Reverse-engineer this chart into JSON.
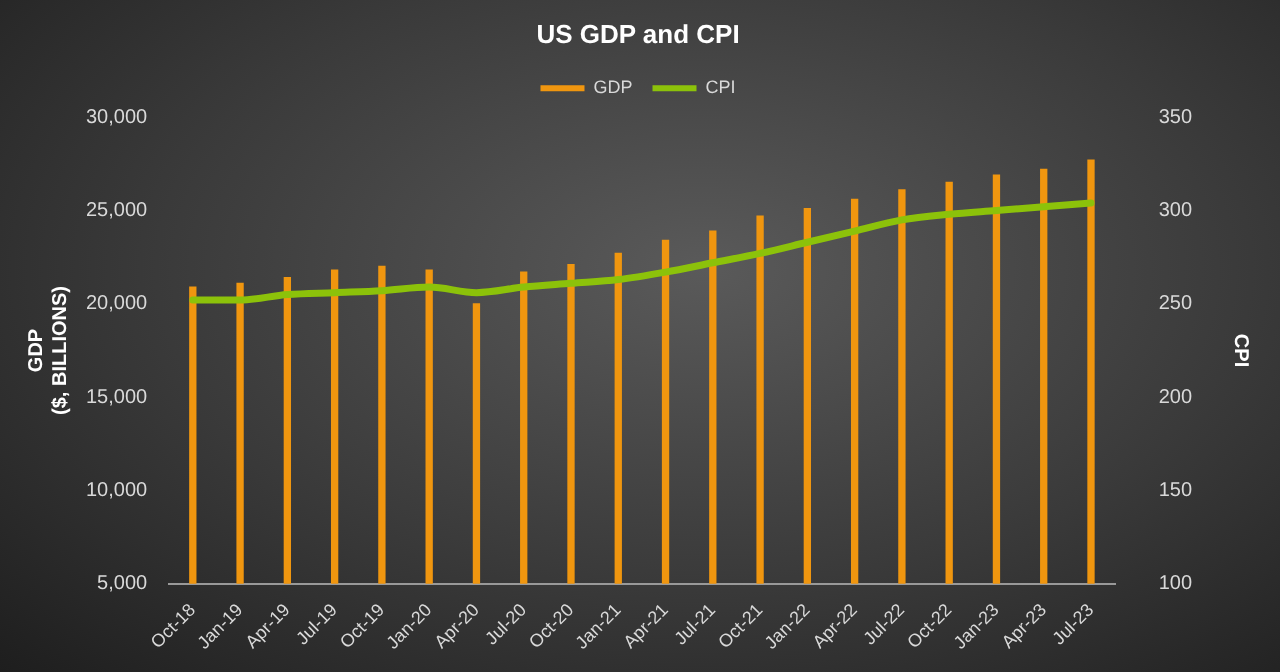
{
  "chart_data": {
    "type": "bar",
    "title": "US GDP and CPI",
    "ylabel": "GDP\n($, BILLIONS)",
    "y2label": "CPI",
    "categories": [
      "Oct-18",
      "Jan-19",
      "Apr-19",
      "Jul-19",
      "Oct-19",
      "Jan-20",
      "Apr-20",
      "Jul-20",
      "Oct-20",
      "Jan-21",
      "Apr-21",
      "Jul-21",
      "Oct-21",
      "Jan-22",
      "Apr-22",
      "Jul-22",
      "Oct-22",
      "Jan-23",
      "Apr-23",
      "Jul-23"
    ],
    "series": [
      {
        "name": "GDP",
        "color": "#f0960f",
        "values": [
          20900,
          21100,
          21400,
          21800,
          22000,
          21800,
          20000,
          21700,
          22100,
          22700,
          23400,
          23900,
          24700,
          25100,
          25600,
          26100,
          26500,
          26900,
          27200,
          27700
        ]
      },
      {
        "name": "CPI",
        "type": "line",
        "axis": "y2",
        "color": "#8cc20a",
        "values": [
          252,
          252,
          255,
          256,
          257,
          259,
          256,
          259,
          261,
          263,
          267,
          272,
          277,
          283,
          289,
          295,
          298,
          300,
          302,
          304
        ]
      }
    ],
    "ylim": [
      5000,
      30000
    ],
    "yticks": [
      {
        "value": 5000,
        "label": "5,000"
      },
      {
        "value": 10000,
        "label": "10,000"
      },
      {
        "value": 15000,
        "label": "15,000"
      },
      {
        "value": 20000,
        "label": "20,000"
      },
      {
        "value": 25000,
        "label": "25,000"
      },
      {
        "value": 30000,
        "label": "30,000"
      }
    ],
    "y2lim": [
      100,
      350
    ],
    "y2ticks": [
      100,
      150,
      200,
      250,
      300,
      350
    ],
    "grid": false,
    "legend": "top",
    "marker": "none"
  }
}
